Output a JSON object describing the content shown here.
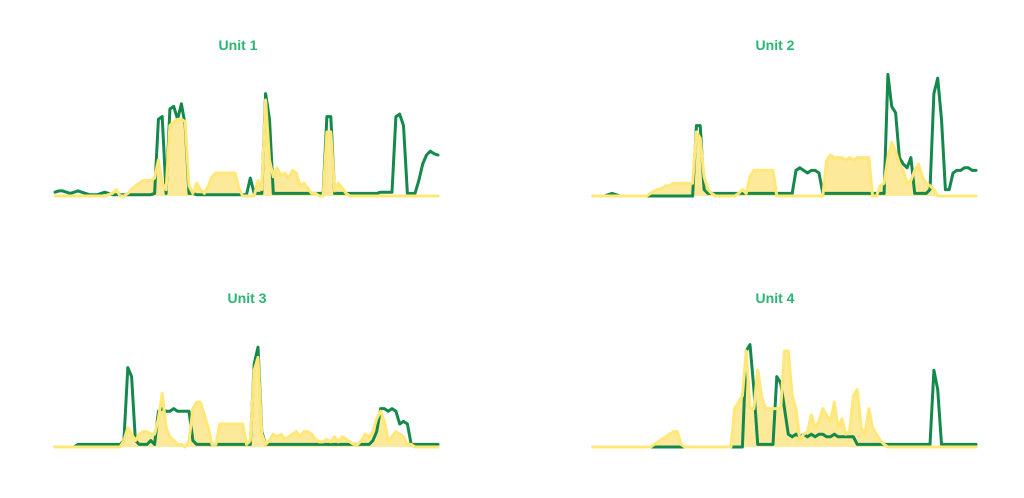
{
  "colors": {
    "green_line": "#15884c",
    "yellow_line": "#ffe878",
    "yellow_fill": "#fde99a",
    "title": "#2ab673",
    "background": "#ffffff"
  },
  "chart_data": [
    {
      "type": "area",
      "title": "Unit 1",
      "x": [
        0,
        1,
        2,
        3,
        4,
        5,
        6,
        7,
        8,
        9,
        10,
        11,
        12,
        13,
        14,
        15,
        16,
        17,
        18,
        19,
        20,
        21,
        22,
        23,
        24,
        25,
        26,
        27,
        28,
        29,
        30,
        31,
        32,
        33,
        34,
        35,
        36,
        37,
        38,
        39,
        40,
        41,
        42,
        43,
        44,
        45,
        46,
        47,
        48,
        49,
        50,
        51,
        52,
        53,
        54,
        55,
        56,
        57,
        58,
        59,
        60,
        61,
        62,
        63,
        64,
        65,
        66,
        67,
        68,
        69,
        70,
        71,
        72,
        73,
        74,
        75,
        76,
        77,
        78,
        79,
        80,
        81,
        82,
        83,
        84,
        85,
        86,
        87,
        88,
        89,
        90,
        91,
        92,
        93,
        94,
        95,
        96,
        97,
        98,
        99,
        100
      ],
      "series": [
        {
          "values": [
            3,
            4,
            4,
            3,
            2,
            3,
            4,
            3,
            2,
            1,
            1,
            1,
            2,
            3,
            2,
            1,
            1,
            1,
            1,
            1,
            1,
            1,
            1,
            1,
            1,
            1,
            2,
            60,
            62,
            2,
            68,
            70,
            60,
            72,
            55,
            2,
            2,
            1,
            1,
            1,
            1,
            1,
            1,
            1,
            1,
            1,
            1,
            1,
            1,
            1,
            1,
            14,
            2,
            2,
            2,
            80,
            60,
            2,
            2,
            2,
            2,
            2,
            2,
            2,
            2,
            2,
            2,
            2,
            2,
            2,
            2,
            62,
            62,
            2,
            2,
            2,
            2,
            2,
            2,
            2,
            2,
            2,
            2,
            2,
            2,
            3,
            3,
            3,
            3,
            62,
            64,
            55,
            2,
            2,
            2,
            12,
            25,
            32,
            35,
            33,
            32
          ]
        },
        {
          "values": [
            0,
            0,
            0,
            0,
            0,
            0,
            0,
            0,
            0,
            0,
            0,
            0,
            0,
            0,
            1,
            2,
            5,
            0,
            0,
            2,
            5,
            8,
            10,
            12,
            12,
            12,
            14,
            28,
            10,
            5,
            55,
            58,
            60,
            60,
            58,
            8,
            2,
            10,
            5,
            2,
            8,
            15,
            18,
            18,
            18,
            18,
            18,
            18,
            6,
            0,
            0,
            0,
            0,
            12,
            5,
            75,
            28,
            15,
            22,
            16,
            18,
            14,
            20,
            18,
            8,
            10,
            6,
            2,
            2,
            0,
            0,
            50,
            50,
            4,
            10,
            6,
            2,
            0,
            0,
            0,
            0,
            0,
            0,
            0,
            0,
            0,
            0,
            0,
            0,
            0,
            0,
            0,
            0,
            0,
            0,
            0,
            0,
            0,
            0,
            0,
            0
          ]
        }
      ]
    },
    {
      "type": "area",
      "title": "Unit 2",
      "x": [
        0,
        1,
        2,
        3,
        4,
        5,
        6,
        7,
        8,
        9,
        10,
        11,
        12,
        13,
        14,
        15,
        16,
        17,
        18,
        19,
        20,
        21,
        22,
        23,
        24,
        25,
        26,
        27,
        28,
        29,
        30,
        31,
        32,
        33,
        34,
        35,
        36,
        37,
        38,
        39,
        40,
        41,
        42,
        43,
        44,
        45,
        46,
        47,
        48,
        49,
        50,
        51,
        52,
        53,
        54,
        55,
        56,
        57,
        58,
        59,
        60,
        61,
        62,
        63,
        64,
        65,
        66,
        67,
        68,
        69,
        70,
        71,
        72,
        73,
        74,
        75,
        76,
        77,
        78,
        79,
        80,
        81,
        82,
        83,
        84,
        85,
        86,
        87,
        88,
        89,
        90,
        91,
        92,
        93,
        94,
        95,
        96,
        97,
        98,
        99,
        100
      ],
      "series": [
        {
          "values": [
            0,
            0,
            0,
            0,
            1,
            2,
            1,
            0,
            0,
            0,
            0,
            0,
            0,
            0,
            0,
            0,
            0,
            0,
            0,
            0,
            0,
            0,
            0,
            0,
            0,
            0,
            0,
            55,
            55,
            5,
            2,
            2,
            2,
            2,
            2,
            2,
            2,
            2,
            2,
            2,
            2,
            2,
            2,
            2,
            2,
            2,
            2,
            2,
            2,
            2,
            2,
            2,
            2,
            20,
            22,
            20,
            18,
            20,
            20,
            18,
            2,
            2,
            2,
            2,
            2,
            2,
            2,
            2,
            2,
            2,
            2,
            2,
            2,
            2,
            2,
            2,
            2,
            95,
            70,
            65,
            30,
            25,
            22,
            30,
            2,
            2,
            2,
            2,
            5,
            80,
            92,
            60,
            5,
            5,
            18,
            20,
            20,
            22,
            22,
            20,
            20
          ]
        },
        {
          "values": [
            0,
            0,
            0,
            0,
            0,
            0,
            0,
            0,
            0,
            0,
            0,
            0,
            0,
            0,
            0,
            2,
            4,
            5,
            6,
            8,
            8,
            10,
            10,
            10,
            10,
            10,
            10,
            50,
            45,
            15,
            5,
            2,
            0,
            0,
            0,
            0,
            0,
            0,
            2,
            5,
            2,
            15,
            20,
            20,
            20,
            20,
            20,
            20,
            0,
            0,
            0,
            0,
            0,
            0,
            0,
            0,
            0,
            0,
            0,
            0,
            0,
            28,
            32,
            30,
            30,
            30,
            28,
            30,
            28,
            30,
            30,
            30,
            30,
            0,
            0,
            8,
            10,
            30,
            42,
            35,
            25,
            20,
            10,
            12,
            20,
            25,
            15,
            10,
            8,
            5,
            0,
            0,
            0,
            0,
            0,
            0,
            0,
            0,
            0,
            0,
            0
          ]
        }
      ]
    },
    {
      "type": "area",
      "title": "Unit 3",
      "x": [
        0,
        1,
        2,
        3,
        4,
        5,
        6,
        7,
        8,
        9,
        10,
        11,
        12,
        13,
        14,
        15,
        16,
        17,
        18,
        19,
        20,
        21,
        22,
        23,
        24,
        25,
        26,
        27,
        28,
        29,
        30,
        31,
        32,
        33,
        34,
        35,
        36,
        37,
        38,
        39,
        40,
        41,
        42,
        43,
        44,
        45,
        46,
        47,
        48,
        49,
        50,
        51,
        52,
        53,
        54,
        55,
        56,
        57,
        58,
        59,
        60,
        61,
        62,
        63,
        64,
        65,
        66,
        67,
        68,
        69,
        70,
        71,
        72,
        73,
        74,
        75,
        76,
        77,
        78,
        79,
        80,
        81,
        82,
        83,
        84,
        85,
        86,
        87,
        88,
        89,
        90,
        91,
        92,
        93,
        94,
        95,
        96,
        97,
        98,
        99,
        100
      ],
      "series": [
        {
          "values": [
            0,
            0,
            0,
            0,
            0,
            0,
            2,
            2,
            2,
            2,
            2,
            2,
            2,
            2,
            2,
            2,
            2,
            2,
            5,
            62,
            55,
            5,
            2,
            2,
            2,
            5,
            2,
            28,
            30,
            28,
            28,
            30,
            28,
            28,
            28,
            28,
            5,
            2,
            2,
            2,
            2,
            2,
            2,
            2,
            2,
            2,
            2,
            2,
            2,
            2,
            2,
            2,
            65,
            78,
            12,
            2,
            2,
            2,
            2,
            2,
            2,
            2,
            2,
            2,
            2,
            2,
            2,
            2,
            2,
            2,
            2,
            2,
            2,
            2,
            2,
            2,
            2,
            2,
            2,
            2,
            2,
            2,
            2,
            5,
            12,
            30,
            30,
            28,
            30,
            28,
            18,
            20,
            18,
            2,
            2,
            2,
            2,
            2,
            2,
            2,
            2
          ]
        },
        {
          "values": [
            0,
            0,
            0,
            0,
            0,
            0,
            0,
            0,
            0,
            0,
            0,
            0,
            0,
            0,
            0,
            0,
            0,
            0,
            5,
            15,
            10,
            5,
            10,
            12,
            12,
            10,
            10,
            22,
            42,
            15,
            8,
            5,
            2,
            2,
            0,
            5,
            30,
            35,
            35,
            25,
            15,
            2,
            2,
            18,
            18,
            18,
            18,
            18,
            18,
            18,
            2,
            5,
            60,
            70,
            10,
            2,
            5,
            10,
            8,
            10,
            6,
            8,
            10,
            12,
            8,
            12,
            12,
            10,
            6,
            4,
            4,
            6,
            4,
            8,
            4,
            8,
            6,
            4,
            2,
            2,
            5,
            10,
            8,
            12,
            22,
            28,
            20,
            5,
            8,
            12,
            10,
            8,
            2,
            2,
            0,
            0,
            0,
            0,
            0,
            0,
            0
          ]
        }
      ]
    },
    {
      "type": "area",
      "title": "Unit 4",
      "x": [
        0,
        1,
        2,
        3,
        4,
        5,
        6,
        7,
        8,
        9,
        10,
        11,
        12,
        13,
        14,
        15,
        16,
        17,
        18,
        19,
        20,
        21,
        22,
        23,
        24,
        25,
        26,
        27,
        28,
        29,
        30,
        31,
        32,
        33,
        34,
        35,
        36,
        37,
        38,
        39,
        40,
        41,
        42,
        43,
        44,
        45,
        46,
        47,
        48,
        49,
        50,
        51,
        52,
        53,
        54,
        55,
        56,
        57,
        58,
        59,
        60,
        61,
        62,
        63,
        64,
        65,
        66,
        67,
        68,
        69,
        70,
        71,
        72,
        73,
        74,
        75,
        76,
        77,
        78,
        79,
        80,
        81,
        82,
        83,
        84,
        85,
        86,
        87,
        88,
        89,
        90,
        91,
        92,
        93,
        94,
        95,
        96,
        97,
        98,
        99,
        100
      ],
      "series": [
        {
          "values": [
            0,
            0,
            0,
            0,
            0,
            0,
            0,
            0,
            0,
            0,
            0,
            0,
            0,
            0,
            0,
            0,
            0,
            0,
            0,
            0,
            0,
            0,
            0,
            0,
            0,
            0,
            0,
            0,
            0,
            0,
            0,
            0,
            0,
            0,
            0,
            0,
            0,
            0,
            0,
            0,
            75,
            80,
            45,
            2,
            2,
            2,
            2,
            2,
            55,
            50,
            30,
            10,
            8,
            10,
            8,
            10,
            8,
            10,
            8,
            10,
            10,
            8,
            8,
            10,
            8,
            8,
            8,
            8,
            8,
            2,
            2,
            2,
            2,
            2,
            2,
            2,
            2,
            2,
            2,
            2,
            2,
            2,
            2,
            2,
            2,
            2,
            2,
            2,
            2,
            60,
            45,
            2,
            2,
            2,
            2,
            2,
            2,
            2,
            2,
            2,
            2
          ]
        },
        {
          "values": [
            0,
            0,
            0,
            0,
            0,
            0,
            0,
            0,
            0,
            0,
            0,
            0,
            0,
            0,
            0,
            0,
            2,
            4,
            6,
            8,
            10,
            12,
            12,
            2,
            0,
            0,
            0,
            0,
            0,
            0,
            0,
            0,
            0,
            0,
            0,
            0,
            0,
            30,
            35,
            40,
            75,
            30,
            30,
            60,
            40,
            30,
            30,
            30,
            30,
            30,
            75,
            75,
            40,
            30,
            5,
            10,
            12,
            25,
            15,
            20,
            30,
            25,
            20,
            35,
            15,
            22,
            10,
            12,
            40,
            45,
            15,
            10,
            30,
            15,
            10,
            5,
            2,
            0,
            0,
            0,
            0,
            0,
            0,
            0,
            0,
            0,
            0,
            0,
            0,
            0,
            0,
            0,
            0,
            0,
            0,
            0,
            0,
            0,
            0,
            0,
            0
          ]
        }
      ]
    }
  ]
}
